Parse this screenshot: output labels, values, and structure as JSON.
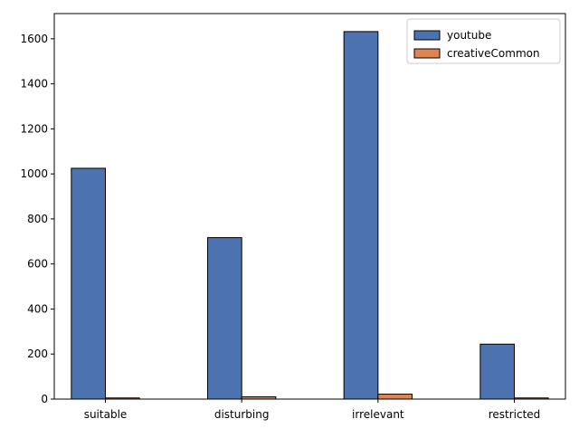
{
  "chart_data": {
    "type": "bar",
    "title": "",
    "xlabel": "",
    "ylabel": "",
    "categories": [
      "suitable",
      "disturbing",
      "irrelevant",
      "restricted"
    ],
    "series": [
      {
        "name": "youtube",
        "values": [
          1025,
          717,
          1632,
          244
        ],
        "color": "#4c72b0"
      },
      {
        "name": "creativeCommon",
        "values": [
          5,
          10,
          22,
          5
        ],
        "color": "#dd8452"
      }
    ],
    "ylim": [
      0,
      1712
    ],
    "yticks": [
      0,
      200,
      400,
      600,
      800,
      1000,
      1200,
      1400,
      1600
    ],
    "grid": false,
    "legend_position": "top-right"
  }
}
